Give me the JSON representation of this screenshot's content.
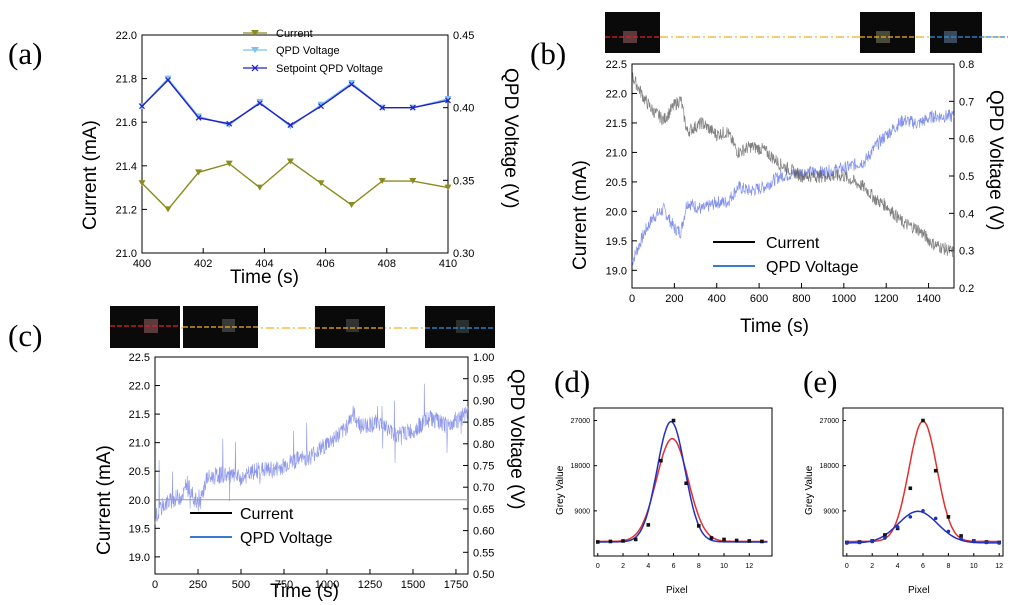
{
  "chart_data": [
    {
      "id": "a",
      "panel_label": "(a)",
      "type": "line",
      "xlabel": "Time (s)",
      "ylabel": "Current (mA)",
      "y2label": "QPD Voltage (V)",
      "xlim": [
        400,
        410
      ],
      "ylim": [
        21.0,
        22.0
      ],
      "y2lim": [
        0.3,
        0.45
      ],
      "x_ticks": [
        "400",
        "402",
        "404",
        "406",
        "408",
        "410"
      ],
      "y_ticks": [
        "21.0",
        "21.2",
        "21.4",
        "21.6",
        "21.8",
        "22.0"
      ],
      "y2_ticks": [
        "0.30",
        "0.35",
        "0.40",
        "0.45"
      ],
      "legend": [
        "Current",
        "QPD Voltage",
        "Setpoint QPD Voltage"
      ],
      "series": [
        {
          "name": "Current",
          "axis": "left",
          "color": "#8b8b1e",
          "marker": "triangle-down",
          "x": [
            400,
            400.85,
            401.85,
            402.85,
            403.85,
            404.85,
            405.85,
            406.85,
            407.85,
            408.85,
            410
          ],
          "y": [
            21.32,
            21.2,
            21.37,
            21.41,
            21.3,
            21.42,
            21.32,
            21.22,
            21.33,
            21.33,
            21.3
          ]
        },
        {
          "name": "QPD Voltage",
          "axis": "right",
          "color": "#7ec0ee",
          "marker": "triangle-down",
          "x": [
            400,
            400.85,
            401.85,
            402.85,
            403.85,
            404.85,
            405.85,
            406.85,
            407.85,
            408.85,
            410
          ],
          "y": [
            0.401,
            0.42,
            0.394,
            0.388,
            0.404,
            0.387,
            0.402,
            0.417,
            0.4,
            0.4,
            0.406
          ]
        },
        {
          "name": "Setpoint QPD Voltage",
          "axis": "right",
          "color": "#2020c8",
          "marker": "x",
          "x": [
            400,
            400.85,
            401.85,
            402.85,
            403.85,
            404.85,
            405.85,
            406.85,
            407.85,
            408.85,
            410
          ],
          "y": [
            0.401,
            0.419,
            0.393,
            0.389,
            0.403,
            0.388,
            0.401,
            0.416,
            0.4,
            0.4,
            0.405
          ]
        }
      ]
    },
    {
      "id": "b",
      "panel_label": "(b)",
      "type": "line",
      "xlabel": "Time (s)",
      "ylabel": "Current (mA)",
      "y2label": "QPD Voltage (V)",
      "xlim": [
        0,
        1520
      ],
      "ylim": [
        18.7,
        22.5
      ],
      "y2lim": [
        0.2,
        0.8
      ],
      "x_ticks": [
        "0",
        "200",
        "400",
        "600",
        "800",
        "1000",
        "1200",
        "1400"
      ],
      "y_ticks": [
        "19.0",
        "19.5",
        "20.0",
        "20.5",
        "21.0",
        "21.5",
        "22.0",
        "22.5"
      ],
      "y2_ticks": [
        "0.2",
        "0.3",
        "0.4",
        "0.5",
        "0.6",
        "0.7",
        "0.8"
      ],
      "legend": [
        "Current",
        "QPD Voltage"
      ],
      "series": [
        {
          "name": "Current",
          "axis": "left",
          "color": "#555555",
          "noisy": true,
          "x": [
            0,
            60,
            100,
            150,
            200,
            230,
            260,
            330,
            400,
            450,
            500,
            560,
            620,
            700,
            800,
            900,
            1000,
            1100,
            1150,
            1200,
            1280,
            1350,
            1420,
            1520
          ],
          "y": [
            22.3,
            21.9,
            21.7,
            21.55,
            21.8,
            21.9,
            21.35,
            21.5,
            21.3,
            21.35,
            21.0,
            21.1,
            21.05,
            20.8,
            20.6,
            20.6,
            20.6,
            20.4,
            20.2,
            20.1,
            19.8,
            19.7,
            19.45,
            19.3
          ]
        },
        {
          "name": "QPD Voltage",
          "axis": "right",
          "color": "#6f7fe8",
          "noisy": true,
          "x": [
            0,
            60,
            100,
            150,
            200,
            230,
            260,
            330,
            400,
            450,
            500,
            560,
            620,
            700,
            800,
            900,
            1000,
            1100,
            1150,
            1200,
            1280,
            1350,
            1420,
            1520
          ],
          "y": [
            0.27,
            0.35,
            0.39,
            0.41,
            0.36,
            0.35,
            0.43,
            0.41,
            0.43,
            0.43,
            0.47,
            0.46,
            0.47,
            0.5,
            0.51,
            0.51,
            0.52,
            0.54,
            0.58,
            0.61,
            0.65,
            0.64,
            0.66,
            0.66
          ]
        }
      ]
    },
    {
      "id": "c",
      "panel_label": "(c)",
      "type": "line",
      "xlabel": "Time (s)",
      "ylabel": "Current (mA)",
      "y2label": "QPD Voltage (V)",
      "xlim": [
        0,
        1820
      ],
      "ylim": [
        18.7,
        22.5
      ],
      "y2lim": [
        0.5,
        1.0
      ],
      "x_ticks": [
        "0",
        "250",
        "500",
        "750",
        "1000",
        "1250",
        "1500",
        "1750"
      ],
      "y_ticks": [
        "19.0",
        "19.5",
        "20.0",
        "20.5",
        "21.0",
        "21.5",
        "22.0",
        "22.5"
      ],
      "y2_ticks": [
        "0.50",
        "0.55",
        "0.60",
        "0.65",
        "0.70",
        "0.75",
        "0.80",
        "0.85",
        "0.90",
        "0.95",
        "1.00"
      ],
      "legend": [
        "Current",
        "QPD Voltage"
      ],
      "series": [
        {
          "name": "Current",
          "axis": "left",
          "color": "#9a9a9a",
          "flat_value": 20.0,
          "x": [
            0,
            1820
          ],
          "y": [
            20.0,
            20.0
          ]
        },
        {
          "name": "QPD Voltage",
          "axis": "right",
          "color": "#7a86e6",
          "noisy": true,
          "x": [
            0,
            50,
            100,
            150,
            200,
            230,
            260,
            300,
            400,
            500,
            600,
            700,
            800,
            900,
            1000,
            1100,
            1150,
            1200,
            1300,
            1400,
            1500,
            1600,
            1700,
            1820
          ],
          "y": [
            0.63,
            0.66,
            0.67,
            0.68,
            0.7,
            0.67,
            0.66,
            0.72,
            0.73,
            0.72,
            0.74,
            0.74,
            0.76,
            0.77,
            0.8,
            0.83,
            0.87,
            0.84,
            0.85,
            0.82,
            0.83,
            0.86,
            0.84,
            0.87
          ]
        }
      ]
    },
    {
      "id": "d",
      "panel_label": "(d)",
      "type": "scatter",
      "xlabel": "Pixel",
      "ylabel": "Grey Value",
      "xlim": [
        -0.3,
        13.8
      ],
      "ylim": [
        0,
        29500
      ],
      "x_ticks": [
        "0",
        "2",
        "4",
        "6",
        "8",
        "10",
        "12"
      ],
      "y_ticks": [
        "9000",
        "18000",
        "27000"
      ],
      "points": {
        "x": [
          0,
          1,
          2,
          3,
          4,
          5,
          6,
          7,
          8,
          9,
          10,
          11,
          12,
          13
        ],
        "y": [
          2800,
          2900,
          3000,
          3300,
          6200,
          19000,
          27000,
          14500,
          6000,
          3600,
          3300,
          3100,
          3000,
          2900
        ]
      },
      "fits": [
        {
          "name": "fit-red",
          "color": "#e03030",
          "amp": 20500,
          "mu": 5.9,
          "sigma": 1.25,
          "base": 2900
        },
        {
          "name": "fit-blue",
          "color": "#2030c0",
          "amp": 24000,
          "mu": 5.8,
          "sigma": 1.1,
          "base": 2800
        }
      ]
    },
    {
      "id": "e",
      "panel_label": "(e)",
      "type": "scatter",
      "xlabel": "Pixel",
      "ylabel": "Grey Value",
      "xlim": [
        -0.3,
        12.3
      ],
      "ylim": [
        0,
        29500
      ],
      "x_ticks": [
        "0",
        "2",
        "4",
        "6",
        "8",
        "10",
        "12"
      ],
      "y_ticks": [
        "9000",
        "18000",
        "27000"
      ],
      "points": {
        "x": [
          0,
          1,
          2,
          3,
          4,
          5,
          6,
          7,
          8,
          9,
          10,
          11,
          12
        ],
        "y": [
          2700,
          2800,
          3000,
          4200,
          5500,
          13500,
          27000,
          17000,
          7800,
          4000,
          3000,
          2800,
          2700
        ]
      },
      "points_blue": {
        "x": [
          0,
          1,
          2,
          3,
          4,
          5,
          6,
          7,
          8,
          9,
          10,
          11,
          12
        ],
        "y": [
          2600,
          2700,
          2900,
          3600,
          5800,
          7800,
          9000,
          7500,
          4900,
          3500,
          2900,
          2700,
          2600
        ]
      },
      "fits": [
        {
          "name": "fit-red",
          "color": "#e03030",
          "amp": 24000,
          "mu": 6.0,
          "sigma": 1.1,
          "base": 2900
        },
        {
          "name": "fit-blue",
          "color": "#2030c0",
          "amp": 6300,
          "mu": 5.6,
          "sigma": 1.55,
          "base": 2600
        }
      ]
    }
  ]
}
